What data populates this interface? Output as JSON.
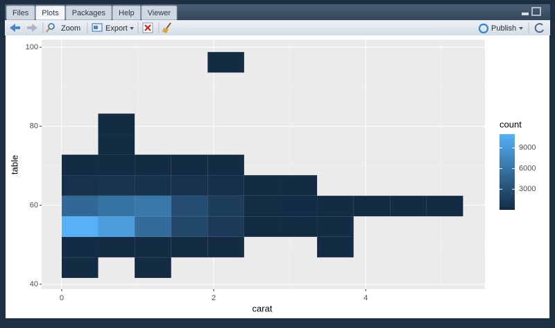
{
  "tabs": [
    "Files",
    "Plots",
    "Packages",
    "Help",
    "Viewer"
  ],
  "toolbar": {
    "zoom": "Zoom",
    "export": "Export",
    "publish": "Publish"
  },
  "chart_data": {
    "type": "bin2d",
    "x_label": "carat",
    "y_label": "table",
    "legend_title": "count",
    "xlim": [
      -0.264,
      5.568
    ],
    "ylim": [
      38.77,
      101.94
    ],
    "xticks": [
      0,
      2,
      4
    ],
    "yticks": [
      40,
      60,
      80,
      100
    ],
    "minor_xticks": [
      1,
      3,
      5
    ],
    "minor_yticks": [
      50,
      70,
      90
    ],
    "grid": true,
    "xbins": [
      0,
      0.48,
      0.96,
      1.44,
      1.92,
      2.4,
      2.88,
      3.36,
      3.84,
      4.32,
      4.8,
      5.28
    ],
    "ybins": [
      41.6,
      46.8,
      52,
      57.2,
      62.4,
      67.6,
      72.8,
      78,
      83.2,
      88.4,
      93.6,
      98.8
    ],
    "x": [
      0,
      0.96,
      0,
      0.48,
      0.96,
      1.44,
      1.92,
      3.36,
      0,
      0.48,
      0.96,
      1.44,
      1.92,
      2.4,
      2.88,
      3.36,
      0,
      0.48,
      0.96,
      1.44,
      1.92,
      2.4,
      2.88,
      3.36,
      3.84,
      4.32,
      4.8,
      0,
      0.48,
      0.96,
      1.44,
      1.92,
      2.4,
      2.88,
      0,
      0.48,
      0.96,
      1.44,
      1.92,
      0.48,
      0.48,
      1.92
    ],
    "y": [
      41.6,
      41.6,
      46.8,
      46.8,
      46.8,
      46.8,
      46.8,
      46.8,
      52,
      52,
      52,
      52,
      52,
      52,
      52,
      52,
      57.2,
      57.2,
      57.2,
      57.2,
      57.2,
      57.2,
      57.2,
      57.2,
      57.2,
      57.2,
      57.2,
      62.4,
      62.4,
      62.4,
      62.4,
      62.4,
      62.4,
      62.4,
      67.6,
      67.6,
      67.6,
      67.6,
      67.6,
      72.8,
      78,
      93.6
    ],
    "values": [
      5,
      3,
      40,
      60,
      50,
      30,
      10,
      1,
      11000,
      9300,
      5300,
      2300,
      1200,
      80,
      20,
      2,
      5000,
      5800,
      6300,
      2800,
      1500,
      150,
      40,
      5,
      2,
      1,
      1,
      500,
      800,
      700,
      500,
      400,
      30,
      5,
      10,
      15,
      10,
      8,
      5,
      1,
      1,
      1
    ],
    "colorlim": [
      1,
      11000
    ],
    "colorticks": [
      3000,
      6000,
      9000
    ],
    "low_color": "#132b43",
    "high_color": "#56b1f7"
  }
}
